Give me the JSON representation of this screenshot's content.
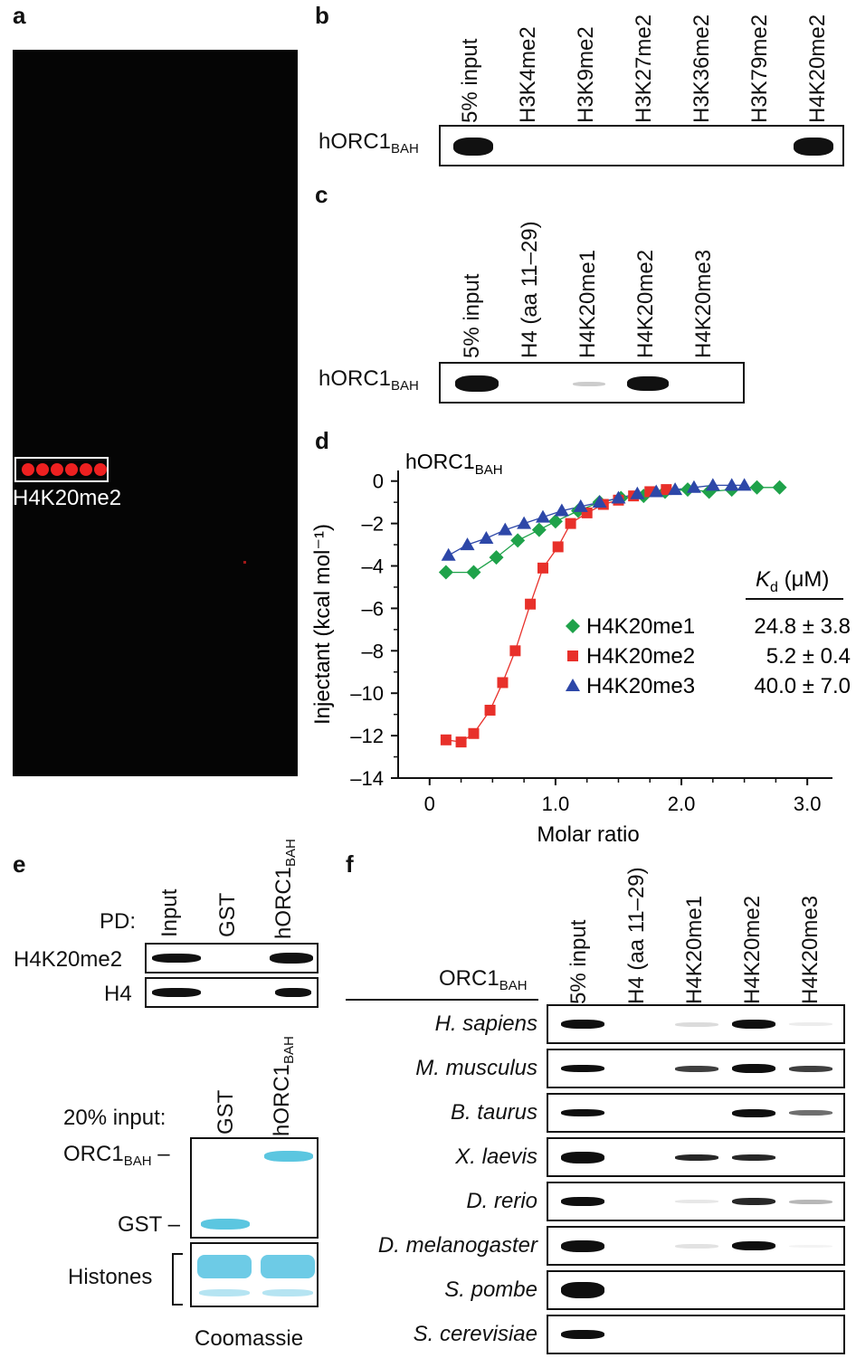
{
  "panels": {
    "a": {
      "letter": "a",
      "spot_label": "H4K20me2"
    },
    "b": {
      "letter": "b",
      "lanes": [
        "5% input",
        "H3K4me2",
        "H3K9me2",
        "H3K27me2",
        "H3K36me2",
        "H3K79me2",
        "H4K20me2"
      ],
      "row_label_main": "hORC1",
      "row_label_sub": "BAH",
      "band_intensity": [
        1,
        0,
        0,
        0,
        0,
        0,
        1
      ]
    },
    "c": {
      "letter": "c",
      "lanes": [
        "5% input",
        "H4 (aa 11–29)",
        "H4K20me1",
        "H4K20me2",
        "H4K20me3"
      ],
      "row_label_main": "hORC1",
      "row_label_sub": "BAH",
      "band_intensity": [
        1,
        0,
        0.15,
        0.9,
        0
      ]
    },
    "d": {
      "letter": "d"
    },
    "e": {
      "letter": "e",
      "pd_label": "PD:",
      "pd_lanes": [
        "Input",
        "GST",
        "hORC1"
      ],
      "pd_lane_sub": "BAH",
      "rows": [
        "H4K20me2",
        "H4"
      ],
      "input_label": "20% input:",
      "input_lanes": [
        "GST",
        "hORC1"
      ],
      "input_lane_sub": "BAH",
      "gel_labels": {
        "orc_main": "ORC1",
        "orc_sub": "BAH",
        "gst": "GST",
        "histones": "Histones"
      },
      "stain": "Coomassie",
      "stain_color": "#5bc6e0"
    },
    "f": {
      "letter": "f",
      "header_main": "ORC1",
      "header_sub": "BAH",
      "lanes": [
        "5% input",
        "H4 (aa 11–29)",
        "H4K20me1",
        "H4K20me2",
        "H4K20me3"
      ],
      "species": [
        "H. sapiens",
        "M. musculus",
        "B. taurus",
        "X. laevis",
        "D. rerio",
        "D. melanogaster",
        "S. pombe",
        "S. cerevisiae"
      ]
    }
  },
  "chart_data": {
    "type": "scatter",
    "title": "hORC1BAH",
    "xlabel": "Molar ratio",
    "ylabel": "Injectant (kcal mol⁻¹)",
    "xlim": [
      -0.25,
      3.2
    ],
    "ylim": [
      -14,
      0.5
    ],
    "xticks": [
      "0",
      "1.0",
      "2.0",
      "3.0"
    ],
    "xtick_values": [
      0,
      1,
      2,
      3
    ],
    "yticks": [
      "0",
      "–2",
      "–4",
      "–6",
      "–8",
      "–10",
      "–12",
      "–14"
    ],
    "ytick_values": [
      0,
      -2,
      -4,
      -6,
      -8,
      -10,
      -12,
      -14
    ],
    "kd_header": "(μM)",
    "kd_symbol": "K",
    "kd_sub": "d",
    "series": [
      {
        "name": "H4K20me1",
        "color": "#1fa24a",
        "marker": "diamond",
        "kd": "24.8 ± 3.8",
        "x": [
          0.13,
          0.35,
          0.53,
          0.7,
          0.87,
          1.0,
          1.18,
          1.35,
          1.52,
          1.7,
          1.87,
          2.05,
          2.22,
          2.4,
          2.6,
          2.78
        ],
        "y": [
          -4.3,
          -4.3,
          -3.6,
          -2.8,
          -2.3,
          -1.9,
          -1.4,
          -1.0,
          -0.8,
          -0.7,
          -0.5,
          -0.4,
          -0.5,
          -0.4,
          -0.3,
          -0.3
        ]
      },
      {
        "name": "H4K20me2",
        "color": "#e8302a",
        "marker": "square",
        "kd": "5.2 ± 0.4",
        "x": [
          0.13,
          0.25,
          0.35,
          0.48,
          0.58,
          0.68,
          0.8,
          0.9,
          1.02,
          1.12,
          1.25,
          1.38,
          1.5,
          1.62,
          1.75,
          1.88
        ],
        "y": [
          -12.2,
          -12.3,
          -11.9,
          -10.8,
          -9.5,
          -8.0,
          -5.8,
          -4.1,
          -3.1,
          -2.0,
          -1.5,
          -1.1,
          -0.9,
          -0.7,
          -0.5,
          -0.4
        ]
      },
      {
        "name": "H4K20me3",
        "color": "#2d47a8",
        "marker": "triangle",
        "kd": "40.0 ± 7.0",
        "x": [
          0.15,
          0.3,
          0.45,
          0.6,
          0.75,
          0.9,
          1.05,
          1.2,
          1.35,
          1.5,
          1.65,
          1.8,
          1.95,
          2.1,
          2.25,
          2.4,
          2.5
        ],
        "y": [
          -3.5,
          -3.0,
          -2.7,
          -2.3,
          -2.0,
          -1.7,
          -1.4,
          -1.2,
          -1.0,
          -0.8,
          -0.6,
          -0.5,
          -0.4,
          -0.3,
          -0.2,
          -0.2,
          -0.2
        ]
      }
    ]
  }
}
